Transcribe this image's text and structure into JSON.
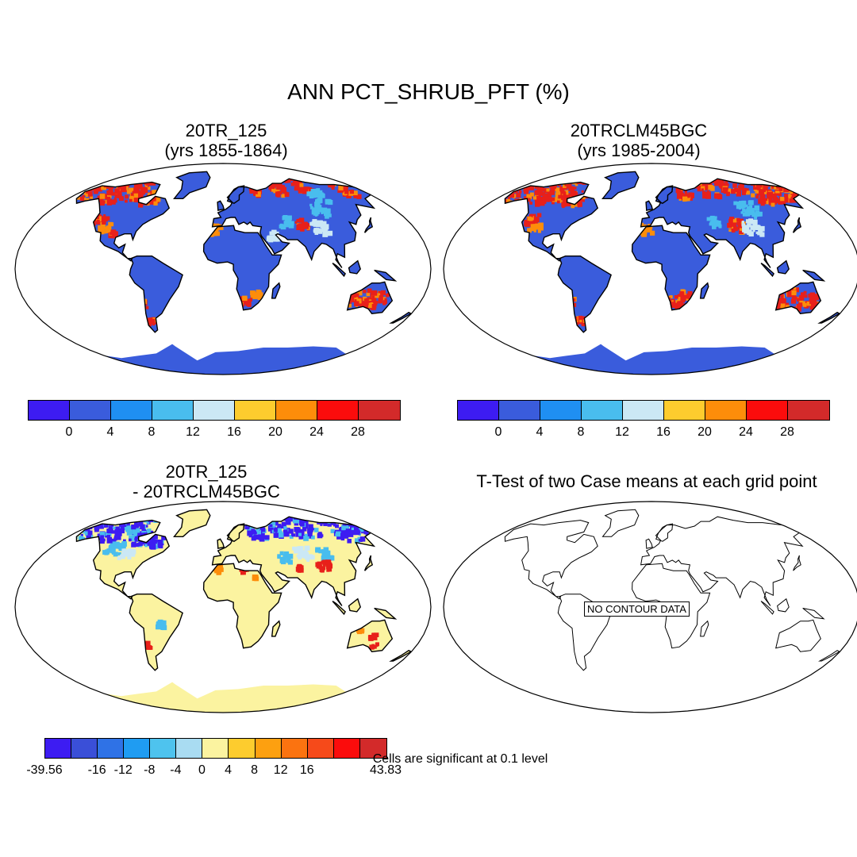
{
  "main_title": "ANN PCT_SHRUB_PFT (%)",
  "panels": {
    "top_left": {
      "title": "20TR_125\n(yrs 1855-1864)"
    },
    "top_right": {
      "title": "20TRCLM45BGC\n (yrs 1985-2004)"
    },
    "bottom_left": {
      "title": "20TR_125\n - 20TRCLM45BGC"
    },
    "bottom_right": {
      "title": "T-Test of two Case means at each grid point",
      "no_data_label": "NO CONTOUR DATA",
      "footnote": "Cells are significant at 0.1 level"
    }
  },
  "colorbars": {
    "absolute": {
      "colors": [
        "#3d1cf2",
        "#3a5cdc",
        "#1f8ff2",
        "#49bdee",
        "#cbe8f5",
        "#fdcc2e",
        "#fd8d0a",
        "#fb0c0c",
        "#d32a2a"
      ],
      "ticks": [
        "0",
        "4",
        "8",
        "12",
        "16",
        "20",
        "24",
        "28"
      ]
    },
    "difference": {
      "colors": [
        "#3d1cf2",
        "#3a4fd8",
        "#2f72e6",
        "#1f9cf2",
        "#4ec3ee",
        "#a9dcf2",
        "#fbf3a0",
        "#fdcc2e",
        "#fda010",
        "#fb7310",
        "#f64a1a",
        "#fb0c0c",
        "#d32a2a"
      ],
      "ticks": [
        "-39.56",
        "-16",
        "-12",
        "-8",
        "-4",
        "0",
        "4",
        "8",
        "12",
        "16",
        "43.83"
      ]
    }
  },
  "map_colors": {
    "land_base_abs": "#3a5cdc",
    "land_base_diff": "#fbf3a0",
    "hot": "#e8201a",
    "hot2": "#fd8d0a",
    "cool": "#3d1cf2",
    "light": "#49bdee",
    "pale": "#cbe8f5"
  }
}
